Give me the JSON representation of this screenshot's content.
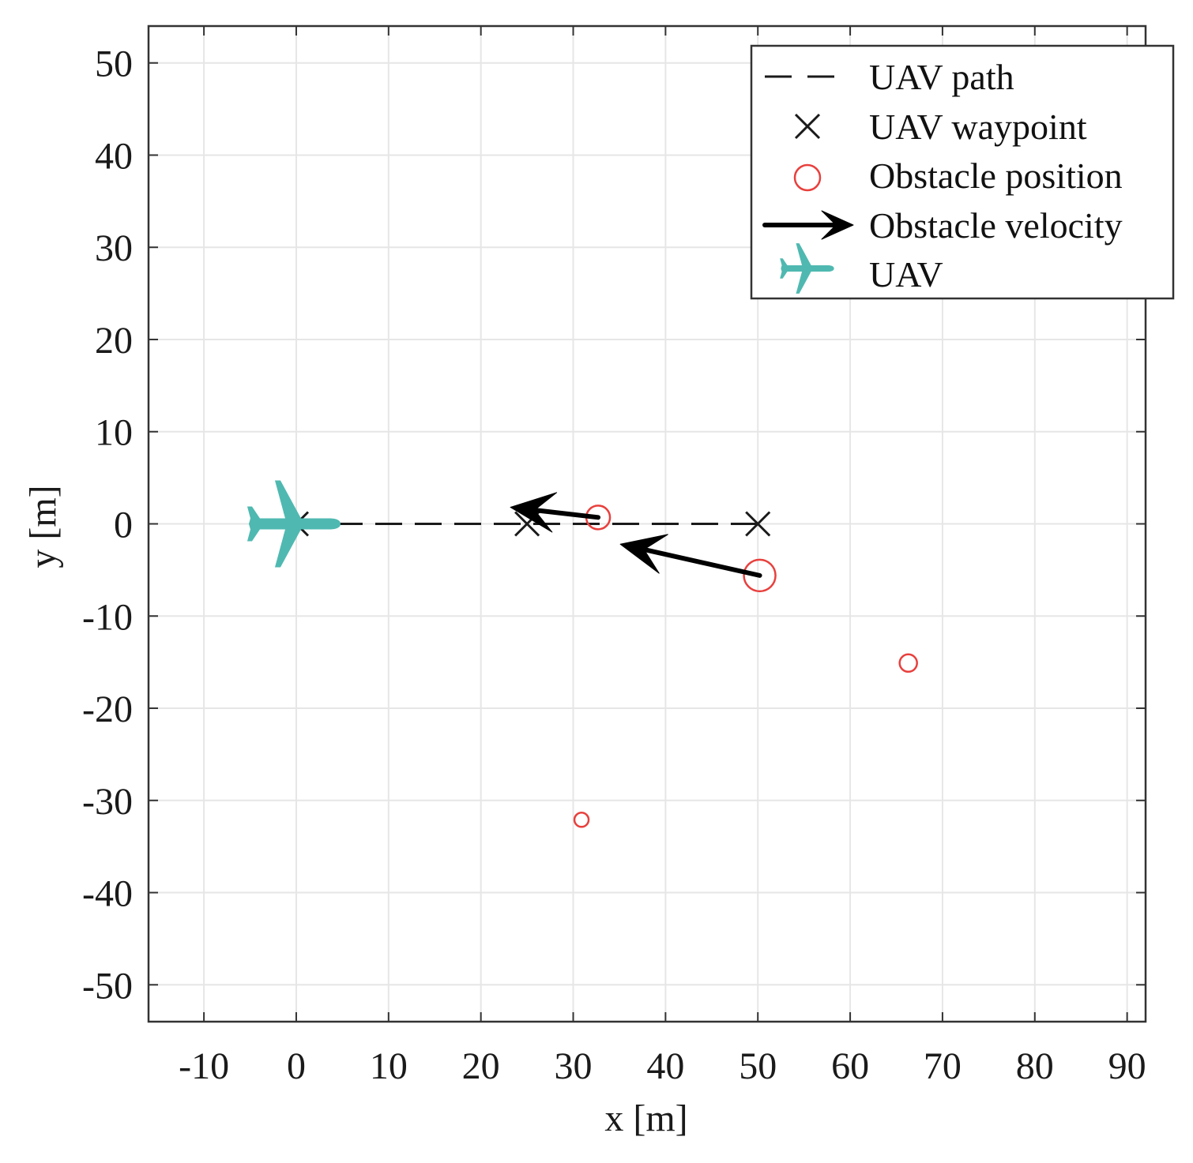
{
  "chart_data": {
    "type": "scatter",
    "title": "",
    "xlabel": "x [m]",
    "ylabel": "y [m]",
    "xlim": [
      -16,
      92
    ],
    "ylim": [
      -54,
      54
    ],
    "xticks": [
      -10,
      0,
      10,
      20,
      30,
      40,
      50,
      60,
      70,
      80,
      90
    ],
    "yticks": [
      -50,
      -40,
      -30,
      -20,
      -10,
      0,
      10,
      20,
      30,
      40,
      50
    ],
    "grid": true,
    "legend_position": "top-right",
    "legend": [
      {
        "key": "path",
        "label": "UAV path"
      },
      {
        "key": "waypoint",
        "label": "UAV waypoint"
      },
      {
        "key": "obstacle",
        "label": "Obstacle position"
      },
      {
        "key": "velocity",
        "label": "Obstacle velocity"
      },
      {
        "key": "uav",
        "label": "UAV"
      }
    ],
    "uav_path": {
      "x": [
        0,
        25,
        50
      ],
      "y": [
        0,
        0,
        0
      ]
    },
    "uav_waypoints": [
      {
        "x": 0,
        "y": 0
      },
      {
        "x": 25,
        "y": 0
      },
      {
        "x": 50,
        "y": 0
      }
    ],
    "obstacles": [
      {
        "x": 32.7,
        "y": 0.7,
        "size": "medium"
      },
      {
        "x": 50.2,
        "y": -5.6,
        "size": "large"
      },
      {
        "x": 66.3,
        "y": -15.1,
        "size": "small"
      },
      {
        "x": 30.9,
        "y": -32.1,
        "size": "tiny"
      }
    ],
    "obstacle_velocities": [
      {
        "x0": 32.7,
        "y0": 0.7,
        "x1": 23.2,
        "y1": 1.8
      },
      {
        "x0": 50.2,
        "y0": -5.6,
        "x1": 35.1,
        "y1": -2.2
      }
    ],
    "uav": {
      "x": 0,
      "y": 0,
      "heading_deg": 0
    },
    "colors": {
      "path": "#1a1a1a",
      "waypoint": "#1a1a1a",
      "obstacle": "#e8403d",
      "velocity": "#000000",
      "uav": "#4fb9b1",
      "grid": "#e6e6e6",
      "axes": "#333333"
    }
  }
}
